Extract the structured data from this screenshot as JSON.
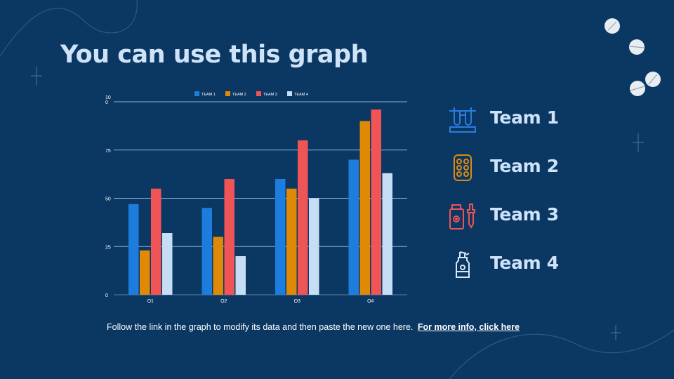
{
  "slide": {
    "title": "You can use this graph",
    "footer_text": "Follow the link in the graph to modify its data and then paste the new one here.",
    "footer_link": "For more info, click here"
  },
  "teams": [
    {
      "label": "Team 1",
      "icon": "test-tubes-icon",
      "color": "#2b7de0"
    },
    {
      "label": "Team 2",
      "icon": "pill-blister-icon",
      "color": "#e08a0d"
    },
    {
      "label": "Team 3",
      "icon": "medicine-bottle-dropper-icon",
      "color": "#ee5455"
    },
    {
      "label": "Team 4",
      "icon": "spray-bottle-icon",
      "color": "#d6e8fa"
    }
  ],
  "colors": {
    "background": "#0b3763",
    "title": "#cfe3f8",
    "gridline": "#8fb0d1"
  },
  "chart_data": {
    "type": "bar",
    "title": "",
    "xlabel": "",
    "ylabel": "",
    "categories": [
      "Q1",
      "Q2",
      "Q3",
      "Q4"
    ],
    "series": [
      {
        "name": "TEAM 1",
        "color": "#1d7ddf",
        "values": [
          47,
          45,
          60,
          70
        ]
      },
      {
        "name": "TEAM 2",
        "color": "#df8a06",
        "values": [
          23,
          30,
          55,
          90
        ]
      },
      {
        "name": "TEAM 3",
        "color": "#ef5457",
        "values": [
          55,
          60,
          80,
          96
        ]
      },
      {
        "name": "TEAM 4",
        "color": "#c6def5",
        "values": [
          32,
          20,
          50,
          63
        ]
      }
    ],
    "ylim": [
      0,
      100
    ],
    "yticks": [
      0,
      25,
      50,
      75,
      100
    ],
    "ytick_labels": [
      "0",
      "25",
      "50",
      "75",
      "10\n0"
    ],
    "grid": true,
    "legend_position": "top-center"
  }
}
